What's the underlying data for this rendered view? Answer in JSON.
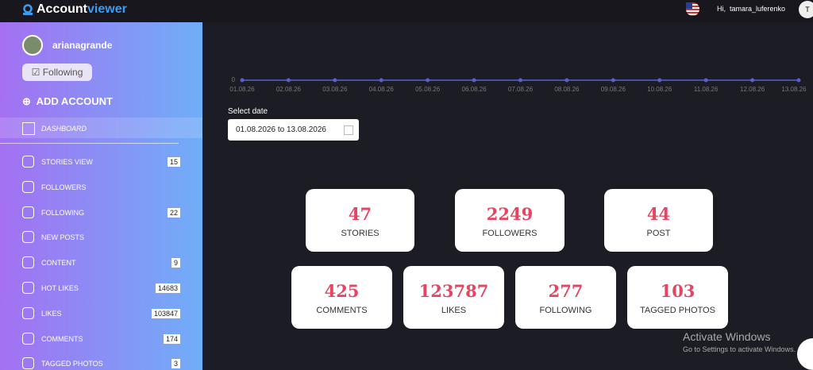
{
  "header": {
    "logo_part1": "Account",
    "logo_part2": "viewer",
    "greeting": "Hi,",
    "username": "tamara_luferenko",
    "avatar_initial": "T"
  },
  "sidebar": {
    "profile": "arianagrande",
    "follow_button": "Following",
    "add_account": "ADD ACCOUNT",
    "dashboard": "DASHBOARD",
    "items": [
      {
        "label": "STORIES VIEW",
        "count": 15
      },
      {
        "label": "FOLLOWERS"
      },
      {
        "label": "FOLLOWING",
        "count": 22
      },
      {
        "label": "NEW POSTS"
      },
      {
        "label": "CONTENT",
        "count": 9
      },
      {
        "label": "HOT LIKES",
        "count": 14683
      },
      {
        "label": "LIKES",
        "count": 103847
      },
      {
        "label": "COMMENTS",
        "count": 174
      },
      {
        "label": "TAGGED PHOTOS",
        "count": 3
      }
    ]
  },
  "chart": {
    "type": "line",
    "x": [
      "01.08.26",
      "02.08.26",
      "03.08.26",
      "04.08.26",
      "05.08.26",
      "06.08.26",
      "07.08.26",
      "08.08.26",
      "09.08.26",
      "10.08.26",
      "11.08.26",
      "12.08.26",
      "13.08.26"
    ],
    "values": [
      0,
      0,
      0,
      0,
      0,
      0,
      0,
      0,
      0,
      0,
      0,
      0,
      0
    ],
    "yticks": [
      0
    ],
    "color": "#5a5fd0"
  },
  "date_picker": {
    "label": "Select date",
    "value": "01.08.2026 to 13.08.2026"
  },
  "stats": [
    {
      "value": 47,
      "label": "STORIES"
    },
    {
      "value": 2249,
      "label": "FOLLOWERS"
    },
    {
      "value": 44,
      "label": "POST"
    },
    {
      "value": 425,
      "label": "COMMENTS"
    },
    {
      "value": 123787,
      "label": "LIKES"
    },
    {
      "value": 277,
      "label": "FOLLOWING"
    },
    {
      "value": 103,
      "label": "TAGGED PHOTOS"
    }
  ],
  "watermark": {
    "title": "Activate Windows",
    "subtitle": "Go to Settings to activate Windows."
  }
}
